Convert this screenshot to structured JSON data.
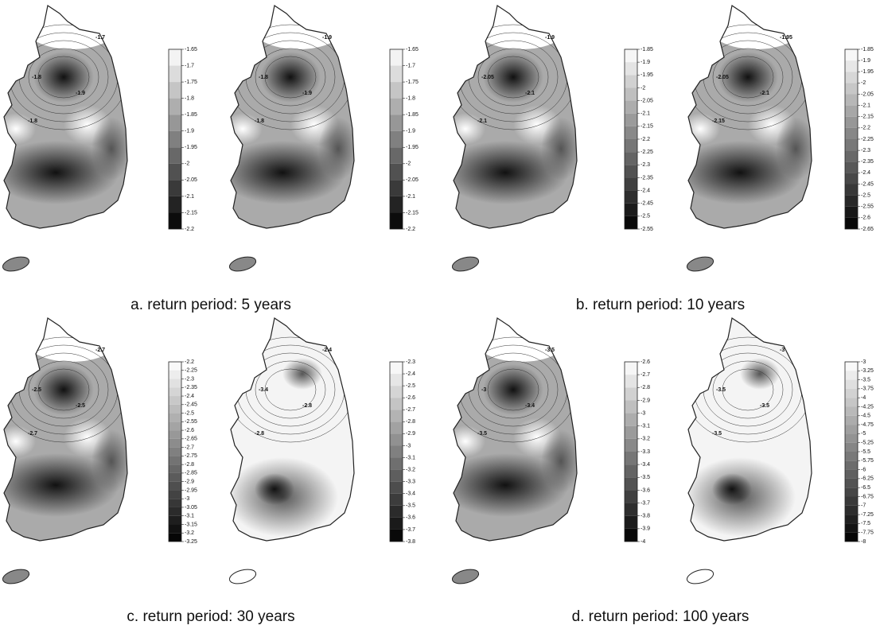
{
  "panels": [
    {
      "colorbar_ticks": [
        -1.65,
        -1.7,
        -1.75,
        -1.8,
        -1.85,
        -1.9,
        -1.95,
        -2,
        -2.05,
        -2.1,
        -2.15,
        -2.2
      ],
      "contour_labels": [
        "-1.7",
        "-1.8",
        "-1.9",
        "-1.8"
      ]
    },
    {
      "colorbar_ticks": [
        -1.65,
        -1.7,
        -1.75,
        -1.8,
        -1.85,
        -1.9,
        -1.95,
        -2,
        -2.05,
        -2.1,
        -2.15,
        -2.2
      ],
      "contour_labels": [
        "-1.9",
        "-1.8",
        "-1.9",
        "-1.8"
      ]
    },
    {
      "colorbar_ticks": [
        -1.85,
        -1.9,
        -1.95,
        -2,
        -2.05,
        -2.1,
        -2.15,
        -2.2,
        -2.25,
        -2.3,
        -2.35,
        -2.4,
        -2.45,
        -2.5,
        -2.55
      ],
      "contour_labels": [
        "-1.9",
        "-2.05",
        "-2.1",
        "-2.1"
      ]
    },
    {
      "colorbar_ticks": [
        -1.85,
        -1.9,
        -1.95,
        -2,
        -2.05,
        -2.1,
        -2.15,
        -2.2,
        -2.25,
        -2.3,
        -2.35,
        -2.4,
        -2.45,
        -2.5,
        -2.55,
        -2.6,
        -2.65
      ],
      "contour_labels": [
        "-1.95",
        "-2.05",
        "-2.1",
        "-2.15"
      ]
    },
    {
      "colorbar_ticks": [
        -2.2,
        -2.25,
        -2.3,
        -2.35,
        -2.4,
        -2.45,
        -2.5,
        -2.55,
        -2.6,
        -2.65,
        -2.7,
        -2.75,
        -2.8,
        -2.85,
        -2.9,
        -2.95,
        -3,
        -3.05,
        -3.1,
        -3.15,
        -3.2,
        -3.25
      ],
      "contour_labels": [
        "-2.7",
        "-2.5",
        "-2.5",
        "-2.7"
      ]
    },
    {
      "colorbar_ticks": [
        -2.3,
        -2.4,
        -2.5,
        -2.6,
        -2.7,
        -2.8,
        -2.9,
        -3,
        -3.1,
        -3.2,
        -3.3,
        -3.4,
        -3.5,
        -3.6,
        -3.7,
        -3.8
      ],
      "contour_labels": [
        "-2.4",
        "-3.4",
        "-2.8",
        "-2.8"
      ]
    },
    {
      "colorbar_ticks": [
        -2.6,
        -2.7,
        -2.8,
        -2.9,
        -3,
        -3.1,
        -3.2,
        -3.3,
        -3.4,
        -3.5,
        -3.6,
        -3.7,
        -3.8,
        -3.9,
        -4
      ],
      "contour_labels": [
        "-3.5",
        "-3",
        "-3.4",
        "-3.5"
      ]
    },
    {
      "colorbar_ticks": [
        -3,
        -3.25,
        -3.5,
        -3.75,
        -4,
        -4.25,
        -4.5,
        -4.75,
        -5,
        -5.25,
        -5.5,
        -5.75,
        -6,
        -6.25,
        -6.5,
        -6.75,
        -7,
        -7.25,
        -7.5,
        -7.75,
        -8
      ],
      "contour_labels": [
        "-3",
        "-3.5",
        "-3.5",
        "-3.5"
      ]
    }
  ],
  "captions": [
    "a. return period: 5 years",
    "b. return period: 10 years",
    "c. return period: 30 years",
    "d. return period: 100 years"
  ]
}
